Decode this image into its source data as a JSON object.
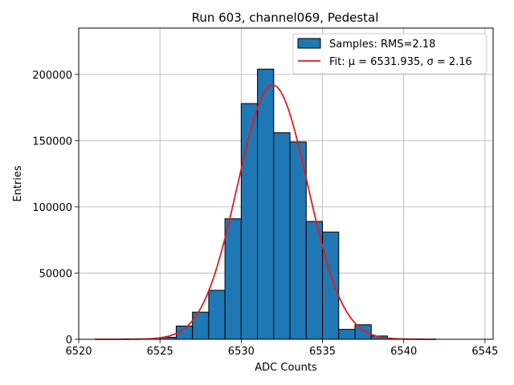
{
  "chart_data": {
    "type": "bar",
    "title": "Run 603, channel069, Pedestal",
    "xlabel": "ADC Counts",
    "ylabel": "Entries",
    "xlim": [
      6520,
      6545.5
    ],
    "ylim": [
      0,
      235000
    ],
    "grid": true,
    "legend_placement": "top-right",
    "x_ticks": [
      6520,
      6525,
      6530,
      6535,
      6540,
      6545
    ],
    "y_ticks": [
      0,
      50000,
      100000,
      150000,
      200000
    ],
    "bins": {
      "edges": [
        6525,
        6526,
        6527,
        6528,
        6529,
        6530,
        6531,
        6532,
        6533,
        6534,
        6535,
        6536,
        6537,
        6538,
        6539
      ],
      "counts": [
        1500,
        10000,
        20500,
        37000,
        91000,
        178000,
        204000,
        156000,
        149000,
        89000,
        81000,
        7500,
        11000,
        2500
      ]
    },
    "series": [
      {
        "name": "Samples: RMS=2.18",
        "kind": "histogram",
        "color": "#1f77b4",
        "edgecolor": "#000000"
      },
      {
        "name": "Fit: μ = 6531.935, σ = 2.16",
        "kind": "gaussian",
        "mu": 6531.935,
        "sigma": 2.16,
        "amplitude": 192000,
        "x_range": [
          6521,
          6542
        ],
        "color": "#e41a1c"
      }
    ]
  }
}
